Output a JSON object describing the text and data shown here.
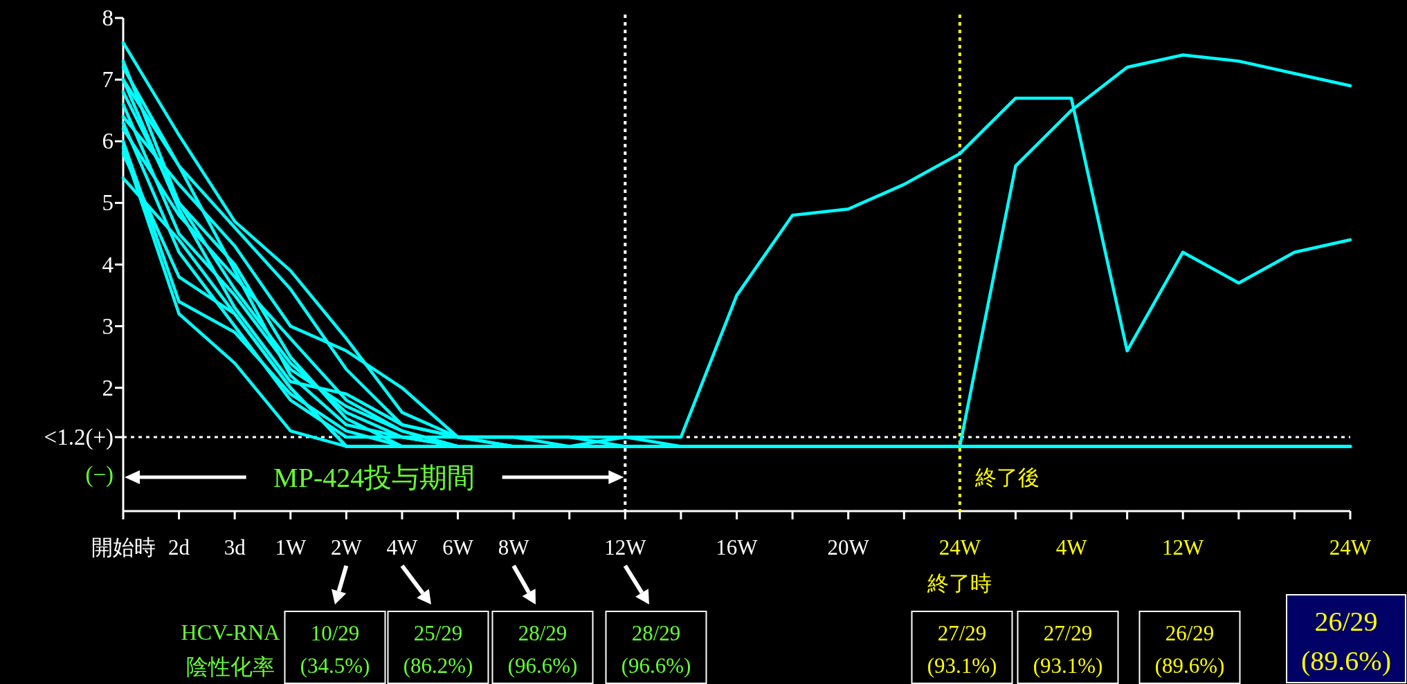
{
  "chart_data": {
    "type": "line",
    "categories": [
      "開始時",
      "2d",
      "3d",
      "1W",
      "2W",
      "4W",
      "6W",
      "8W",
      null,
      "12W",
      null,
      "16W",
      null,
      "20W",
      null,
      "24W",
      null,
      "4W",
      null,
      "12W",
      null,
      null,
      "24W"
    ],
    "ylim": [
      0,
      8
    ],
    "yticks": [
      {
        "value": 0.6,
        "label": "(−)"
      },
      {
        "value": 1.2,
        "label": "<1.2(+)"
      },
      2,
      3,
      4,
      5,
      6,
      7,
      8
    ],
    "ref_lines": [
      {
        "axis": "y",
        "value": 1.2,
        "color": "#ffffff",
        "line_style": "dotted"
      },
      {
        "axis": "x",
        "value": "12W",
        "color": "#ffffff",
        "line_style": "dotted"
      },
      {
        "axis": "x",
        "value": "24W",
        "color": "#ffff00",
        "line_style": "dotted"
      }
    ],
    "annotations": [
      "MP-424投与期間",
      "終了後",
      "終了時",
      "HCV-RNA",
      "陰性化率",
      "10/29 (34.5%)",
      "25/29 (86.2%)",
      "28/29 (96.6%)",
      "28/29 (96.6%)",
      "27/29 (93.1%)",
      "27/29 (93.1%)",
      "26/29 (89.6%)",
      "26/29 (89.6%)"
    ],
    "line_style": "solid",
    "series": [
      {
        "color": "#00ffff",
        "values": [
          6.4,
          5.3,
          4.3,
          3.0,
          2.6,
          2.0,
          1.2,
          1.2,
          1.2,
          1.05,
          1.05,
          1.05,
          1.05,
          1.05,
          1.05,
          1.05,
          1.05,
          1.05,
          1.05,
          1.05,
          1.05,
          1.05,
          1.05
        ]
      },
      {
        "color": "#00ffff",
        "values": [
          7.0,
          5.6,
          4.6,
          3.6,
          2.3,
          1.4,
          1.2,
          1.2,
          1.2,
          1.2,
          1.2,
          3.5,
          4.8,
          4.9,
          5.3,
          5.8,
          6.7,
          6.7,
          2.6,
          4.2,
          3.7,
          4.2,
          4.4
        ]
      },
      {
        "color": "#00ffff",
        "values": [
          6.2,
          4.8,
          3.8,
          2.8,
          1.8,
          1.3,
          1.05,
          1.05,
          1.05,
          1.05,
          1.05,
          1.05,
          1.05,
          1.05,
          1.05,
          1.05,
          5.6,
          6.5,
          7.2,
          7.4,
          7.3,
          7.1,
          6.9
        ]
      },
      {
        "color": "#00ffff",
        "values": [
          7.6,
          6.1,
          4.7,
          3.9,
          2.8,
          1.6,
          1.2,
          1.05,
          1.05,
          1.05,
          1.05,
          1.05,
          1.05,
          1.05,
          1.05,
          1.05,
          1.05,
          1.05,
          1.05,
          1.05,
          1.05,
          1.05,
          1.05
        ]
      },
      {
        "color": "#00ffff",
        "values": [
          5.4,
          4.4,
          3.2,
          2.0,
          1.05,
          1.05,
          1.05,
          1.05,
          1.05,
          1.05,
          1.05,
          1.05,
          1.05,
          1.05,
          1.05,
          1.05,
          1.05,
          1.05,
          1.05,
          1.05,
          1.05,
          1.05,
          1.05
        ]
      },
      {
        "color": "#00ffff",
        "values": [
          5.9,
          3.2,
          2.4,
          1.3,
          1.05,
          1.05,
          1.05,
          1.05,
          1.05,
          1.05,
          1.05,
          1.05,
          1.05,
          1.05,
          1.05,
          1.05,
          1.05,
          1.05,
          1.05,
          1.05,
          1.05,
          1.05,
          1.05
        ]
      },
      {
        "color": "#00ffff",
        "values": [
          6.8,
          5.0,
          4.0,
          2.5,
          1.5,
          1.05,
          1.05,
          1.05,
          1.05,
          1.05,
          1.05,
          1.05,
          1.05,
          1.05,
          1.05,
          1.05,
          1.05,
          1.05,
          1.05,
          1.05,
          1.05,
          1.05,
          1.05
        ]
      },
      {
        "color": "#00ffff",
        "values": [
          7.2,
          5.6,
          3.9,
          2.2,
          1.4,
          1.2,
          1.05,
          1.05,
          1.05,
          1.05,
          1.05,
          1.05,
          1.05,
          1.05,
          1.05,
          1.05,
          1.05,
          1.05,
          1.05,
          1.05,
          1.05,
          1.05,
          1.05
        ]
      },
      {
        "color": "#00ffff",
        "values": [
          6.0,
          3.4,
          2.9,
          1.9,
          1.3,
          1.05,
          1.05,
          1.05,
          1.05,
          1.05,
          1.05,
          1.05,
          1.05,
          1.05,
          1.05,
          1.05,
          1.05,
          1.05,
          1.05,
          1.05,
          1.05,
          1.05,
          1.05
        ]
      },
      {
        "color": "#00ffff",
        "values": [
          6.6,
          4.5,
          3.5,
          2.3,
          1.7,
          1.3,
          1.05,
          1.05,
          1.05,
          1.05,
          1.05,
          1.05,
          1.05,
          1.05,
          1.05,
          1.05,
          1.05,
          1.05,
          1.05,
          1.05,
          1.05,
          1.05,
          1.05
        ]
      },
      {
        "color": "#00ffff",
        "values": [
          7.3,
          5.0,
          3.6,
          2.4,
          1.6,
          1.2,
          1.2,
          1.05,
          1.05,
          1.05,
          1.05,
          1.05,
          1.05,
          1.05,
          1.05,
          1.05,
          1.05,
          1.05,
          1.05,
          1.05,
          1.05,
          1.05,
          1.05
        ]
      },
      {
        "color": "#00ffff",
        "values": [
          6.3,
          4.2,
          3.0,
          1.8,
          1.2,
          1.2,
          1.05,
          1.05,
          1.05,
          1.05,
          1.05,
          1.05,
          1.05,
          1.05,
          1.05,
          1.05,
          1.05,
          1.05,
          1.05,
          1.05,
          1.05,
          1.05,
          1.05
        ]
      },
      {
        "color": "#00ffff",
        "values": [
          5.8,
          3.8,
          3.2,
          2.0,
          1.05,
          1.05,
          1.05,
          1.05,
          1.05,
          1.05,
          1.05,
          1.05,
          1.05,
          1.05,
          1.05,
          1.05,
          1.05,
          1.05,
          1.05,
          1.05,
          1.05,
          1.05,
          1.05
        ]
      },
      {
        "color": "#00ffff",
        "values": [
          7.0,
          4.9,
          3.3,
          2.1,
          1.9,
          1.4,
          1.2,
          1.2,
          1.05,
          1.2,
          1.05,
          1.05,
          1.05,
          1.05,
          1.05,
          1.05,
          1.05,
          1.05,
          1.05,
          1.05,
          1.05,
          1.05,
          1.05
        ]
      }
    ]
  }
}
